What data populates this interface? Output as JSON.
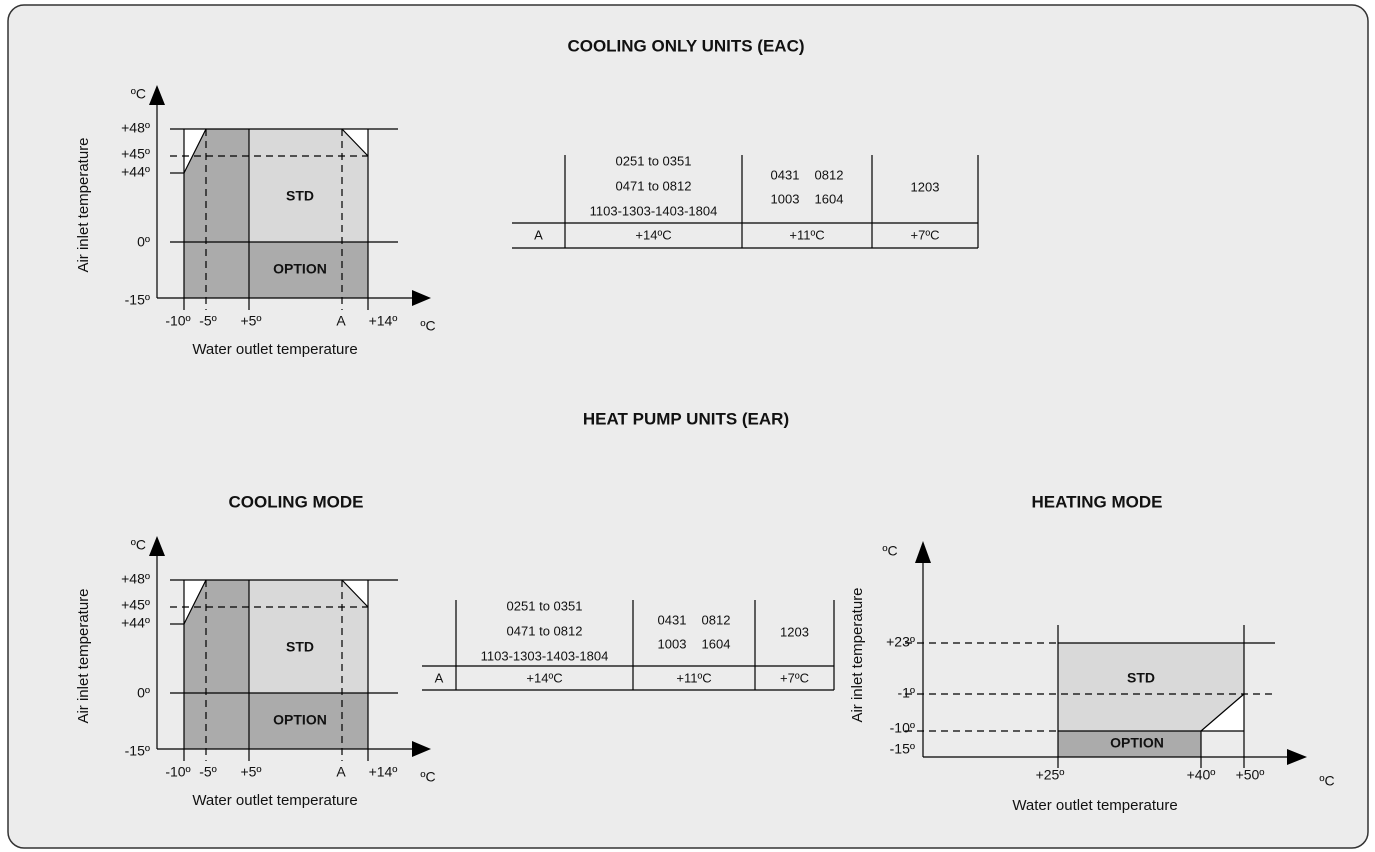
{
  "title": "COOLING ONLY UNITS (EAC)",
  "cooling_only": {
    "diagram": {
      "y_unit": "ºC",
      "y_label": "Air inlet temperature",
      "y_ticks": [
        "+48º",
        "+45º",
        "+44º",
        "0º",
        "-15º"
      ],
      "x_ticks": [
        "-10º",
        "-5º",
        "+5º",
        "A",
        "+14º"
      ],
      "x_unit": "ºC",
      "x_label": "Water outlet temperature",
      "regions": [
        "STD",
        "OPTION"
      ]
    },
    "table": {
      "header": [
        [
          "0251 to 0351",
          "0471 to 0812",
          "1103-1303-1403-1804"
        ],
        [
          "0431",
          "0812",
          "1003",
          "1604"
        ],
        [
          "1203"
        ]
      ],
      "row": [
        "A",
        "+14ºC",
        "+11ºC",
        "+7ºC"
      ]
    }
  },
  "heat_pump_title": "HEAT PUMP UNITS (EAR)",
  "cooling_mode": {
    "title": "COOLING MODE",
    "diagram": {
      "y_unit": "ºC",
      "y_label": "Air inlet temperature",
      "y_ticks": [
        "+48º",
        "+45º",
        "+44º",
        "0º",
        "-15º"
      ],
      "x_ticks": [
        "-10º",
        "-5º",
        "+5º",
        "A",
        "+14º"
      ],
      "x_unit": "ºC",
      "x_label": "Water outlet temperature",
      "regions": [
        "STD",
        "OPTION"
      ]
    },
    "table": {
      "header": [
        [
          "0251 to 0351",
          "0471 to 0812",
          "1103-1303-1403-1804"
        ],
        [
          "0431",
          "0812",
          "1003",
          "1604"
        ],
        [
          "1203"
        ]
      ],
      "row": [
        "A",
        "+14ºC",
        "+11ºC",
        "+7ºC"
      ]
    }
  },
  "heating_mode": {
    "title": "HEATING MODE",
    "diagram": {
      "y_unit": "ºC",
      "y_label": "Air inlet temperature",
      "y_ticks": [
        "+23º",
        "-1º",
        "-10º",
        "-15º"
      ],
      "x_ticks": [
        "+25º",
        "+40º",
        "+50º"
      ],
      "x_unit": "ºC",
      "x_label": "Water outlet temperature",
      "regions": [
        "STD",
        "OPTION"
      ]
    }
  }
}
